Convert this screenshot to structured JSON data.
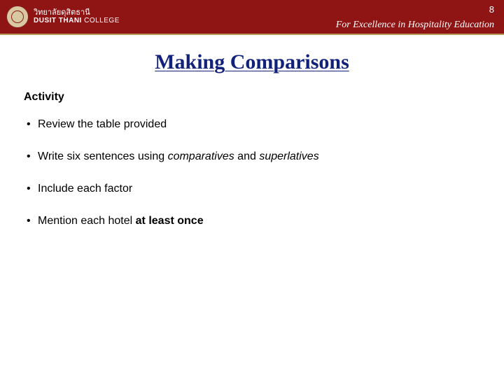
{
  "colors": {
    "header_bg": "#8f1414",
    "header_underline": "#b89a5a",
    "title_color": "#12217a",
    "text_color": "#000000"
  },
  "header": {
    "institution_thai": "วิทยาลัยดุสิตธานี",
    "institution_en_prefix": "DUSIT THANI",
    "institution_en_suffix": " COLLEGE",
    "page_number": "8",
    "tagline": "For Excellence in Hospitality Education"
  },
  "title": "Making Comparisons",
  "section_label": "Activity",
  "bullets": [
    {
      "parts": [
        {
          "text": "Review the table provided",
          "style": ""
        }
      ]
    },
    {
      "parts": [
        {
          "text": "Write six sentences using ",
          "style": ""
        },
        {
          "text": "comparatives",
          "style": "italic"
        },
        {
          "text": " and ",
          "style": ""
        },
        {
          "text": "superlatives",
          "style": "italic"
        }
      ]
    },
    {
      "parts": [
        {
          "text": "Include each factor",
          "style": ""
        }
      ]
    },
    {
      "parts": [
        {
          "text": "Mention each hotel ",
          "style": ""
        },
        {
          "text": "at least once",
          "style": "bold"
        }
      ]
    }
  ]
}
